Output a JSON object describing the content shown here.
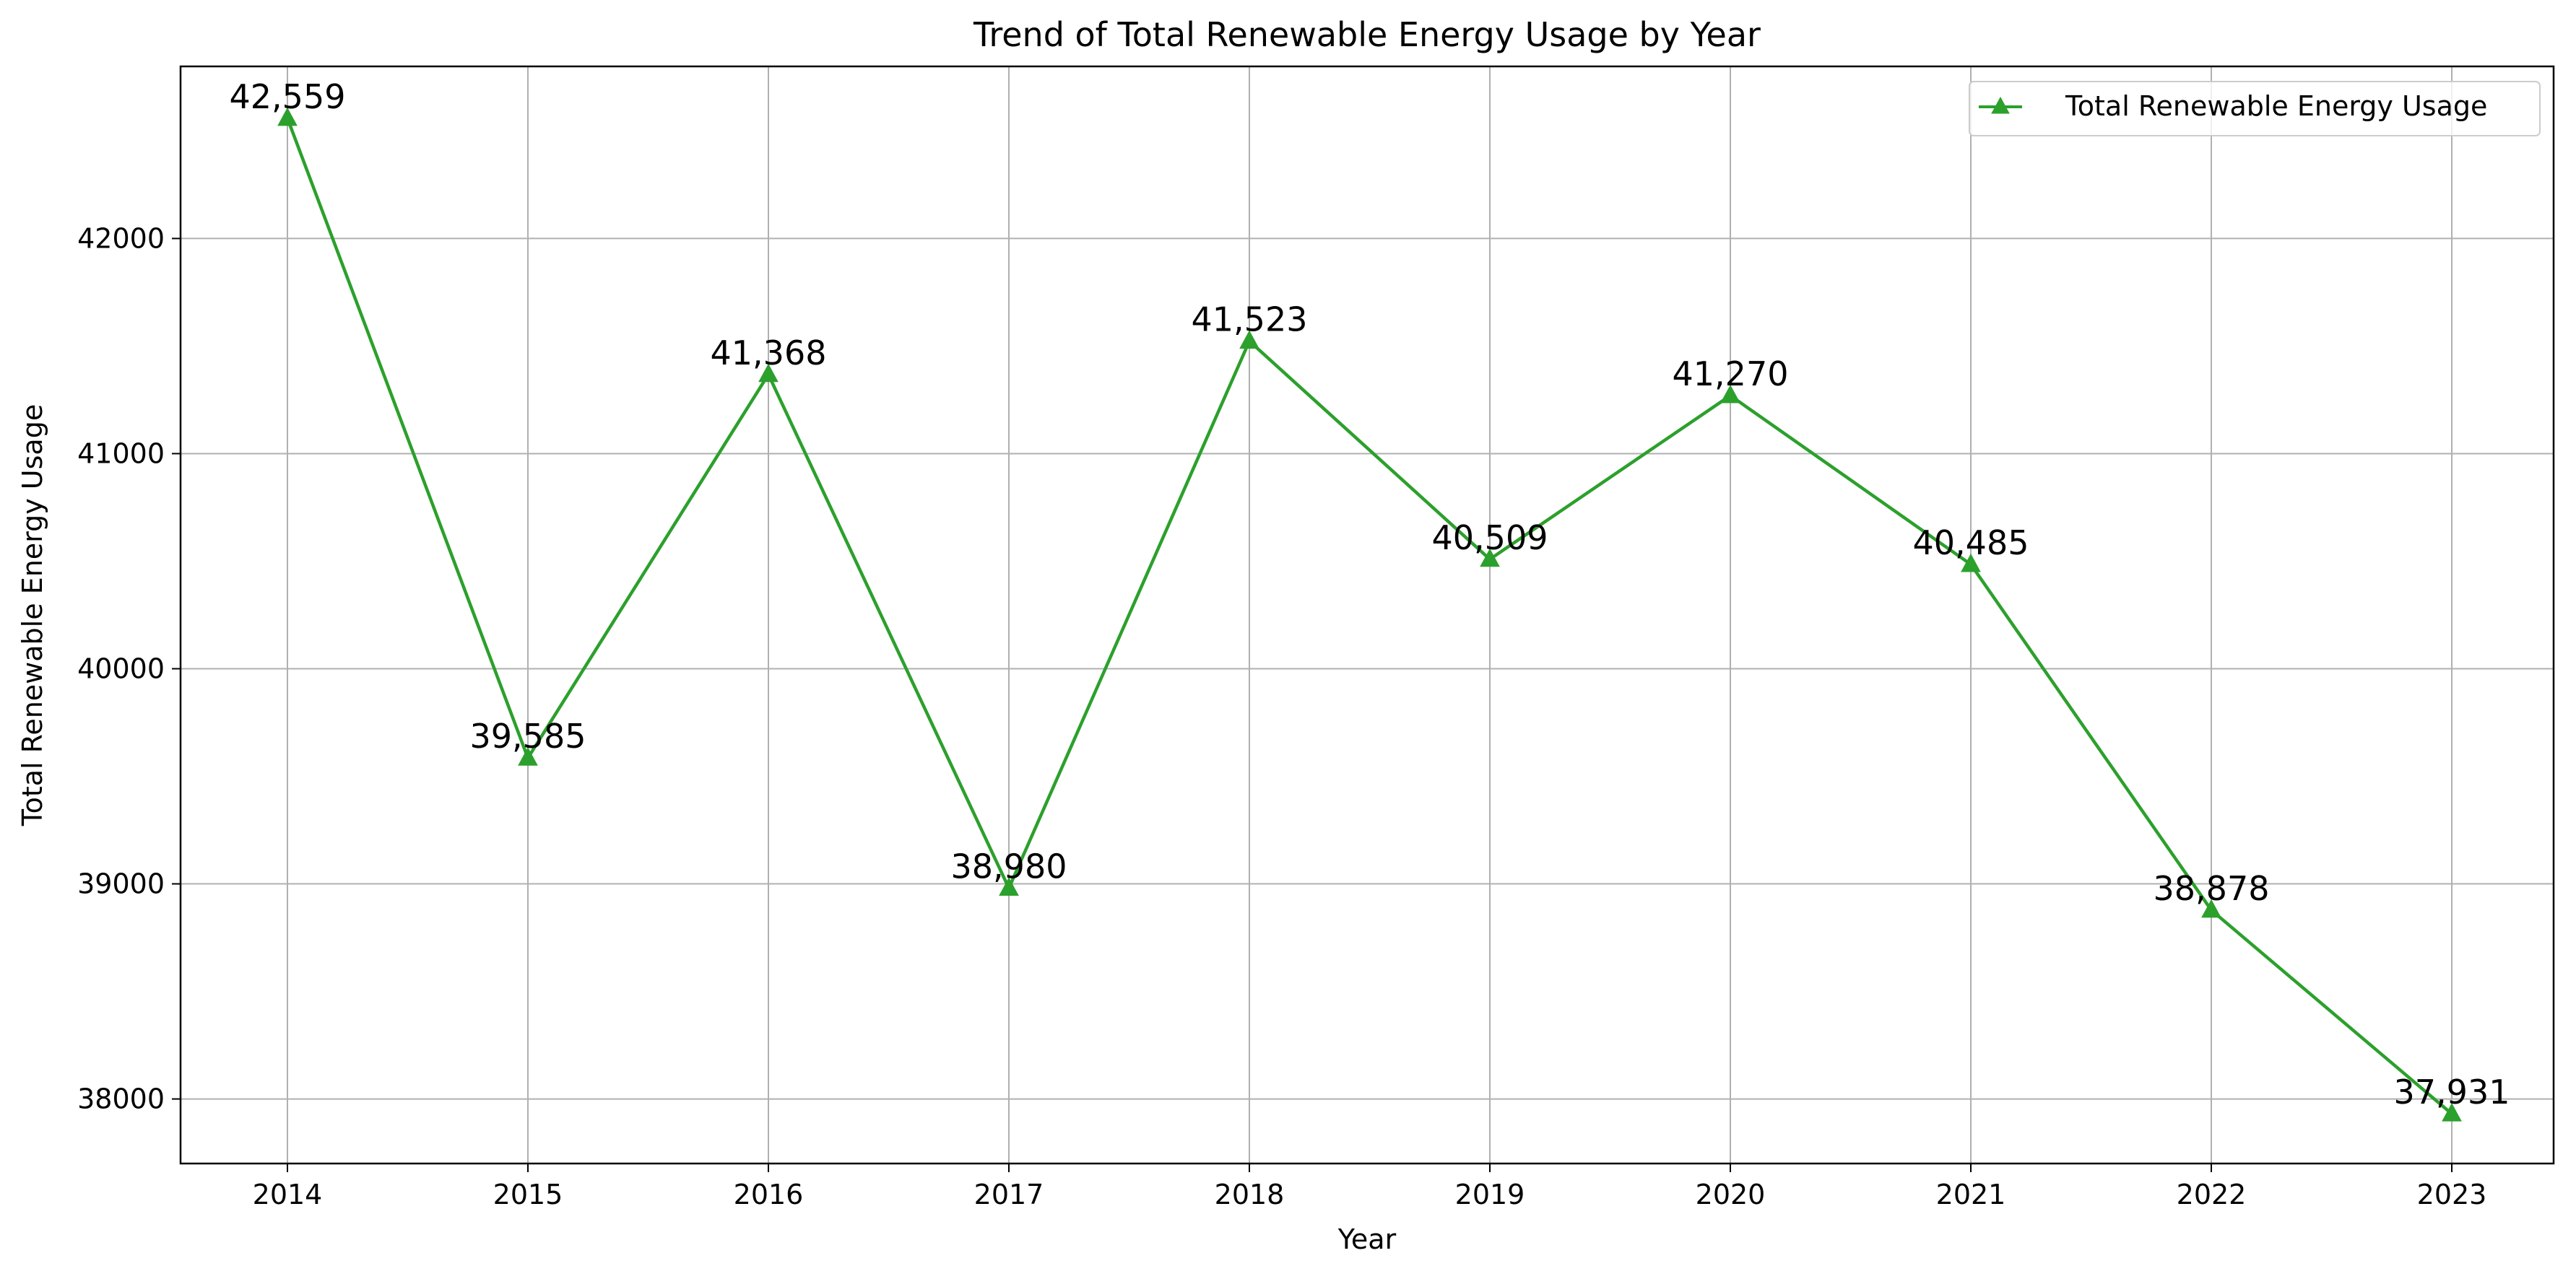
{
  "chart_data": {
    "type": "line",
    "title": "Trend of Total Renewable Energy Usage by Year",
    "xlabel": "Year",
    "ylabel": "Total Renewable Energy Usage",
    "x": [
      "2014",
      "2015",
      "2016",
      "2017",
      "2018",
      "2019",
      "2020",
      "2021",
      "2022",
      "2023"
    ],
    "series": [
      {
        "name": "Total Renewable Energy Usage",
        "values": [
          42559,
          39585,
          41368,
          38980,
          41523,
          40509,
          41270,
          40485,
          38878,
          37931
        ],
        "data_labels": [
          "42,559",
          "39,585",
          "41,368",
          "38,980",
          "41,523",
          "40,509",
          "41,270",
          "40,485",
          "38,878",
          "37,931"
        ],
        "color": "#2ca02c",
        "marker": "triangle-up"
      }
    ],
    "yticks": [
      "38000",
      "39000",
      "40000",
      "41000",
      "42000"
    ],
    "ylim": [
      37700,
      42800
    ],
    "grid": true,
    "legend_position": "upper right"
  }
}
